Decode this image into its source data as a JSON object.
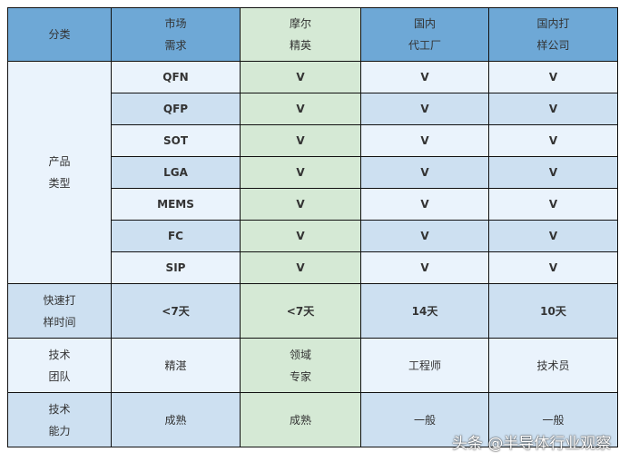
{
  "header": [
    "分类",
    "市场\n需求",
    "摩尔\n精英",
    "国内\n代工厂",
    "国内打\n样公司"
  ],
  "product_group": {
    "label": "产品\n类型",
    "rows": [
      {
        "type": "QFN",
        "values": [
          "V",
          "V",
          "V"
        ]
      },
      {
        "type": "QFP",
        "values": [
          "V",
          "V",
          "V"
        ]
      },
      {
        "type": "SOT",
        "values": [
          "V",
          "V",
          "V"
        ]
      },
      {
        "type": "LGA",
        "values": [
          "V",
          "V",
          "V"
        ]
      },
      {
        "type": "MEMS",
        "values": [
          "V",
          "V",
          "V"
        ]
      },
      {
        "type": "FC",
        "values": [
          "V",
          "V",
          "V"
        ]
      },
      {
        "type": "SIP",
        "values": [
          "V",
          "V",
          "V"
        ]
      }
    ]
  },
  "other_rows": [
    {
      "label": "快速打\n样时间",
      "values": [
        "<7天",
        "<7天",
        "14天",
        "10天"
      ]
    },
    {
      "label": "技术\n团队",
      "values": [
        "精湛",
        "领域\n专家",
        "工程师",
        "技术员"
      ]
    },
    {
      "label": "技术\n能力",
      "values": [
        "成熟",
        "成熟",
        "一般",
        "一般"
      ]
    }
  ],
  "watermark": "头条 @半导体行业观察",
  "colors": {
    "header": "#6ea8d6",
    "light": "#eaf3fc",
    "dark": "#cde0f1",
    "green": "#d5e9d5"
  }
}
